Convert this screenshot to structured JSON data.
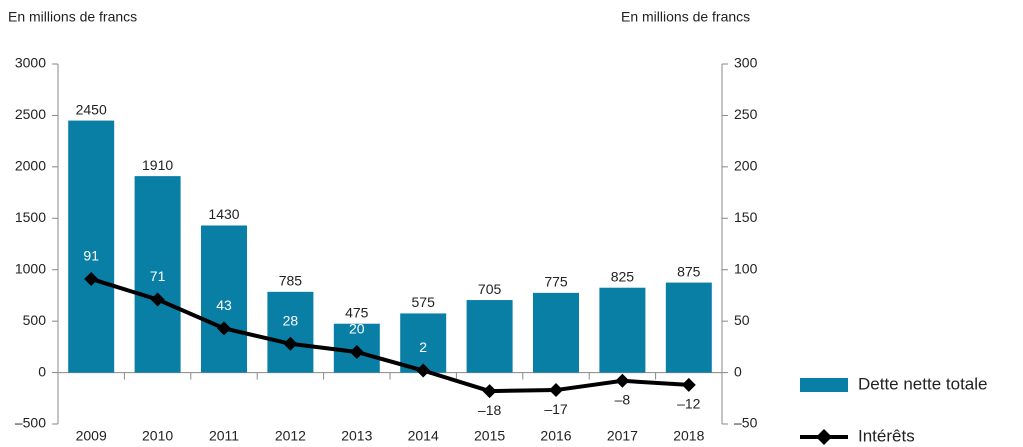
{
  "chart_data": {
    "type": "bar-line",
    "y_label": "En millions de francs",
    "y2_label": "En millions de francs",
    "categories": [
      "2009",
      "2010",
      "2011",
      "2012",
      "2013",
      "2014",
      "2015",
      "2016",
      "2017",
      "2018"
    ],
    "series": [
      {
        "name": "Dette nette totale",
        "type": "bar",
        "color": "#0a7fa6",
        "axis": "y",
        "values": [
          2450,
          1910,
          1430,
          785,
          475,
          575,
          705,
          775,
          825,
          875
        ]
      },
      {
        "name": "Intérêts",
        "type": "line",
        "color": "#000000",
        "axis": "y2",
        "values": [
          91,
          71,
          43,
          28,
          20,
          2,
          -18,
          -17,
          -8,
          -12
        ],
        "value_labels": [
          "91",
          "71",
          "43",
          "28",
          "20",
          "2",
          "–18",
          "–17",
          "–8",
          "–12"
        ]
      }
    ],
    "ylim": [
      -500,
      3000
    ],
    "yticks": [
      {
        "value": -500,
        "label": "–500"
      },
      0,
      500,
      1000,
      1500,
      2000,
      2500,
      3000
    ],
    "y2lim": [
      -50,
      300
    ],
    "y2ticks": [
      {
        "value": -50,
        "label": "–50"
      },
      0,
      50,
      100,
      150,
      200,
      250,
      300
    ],
    "grid": false
  }
}
